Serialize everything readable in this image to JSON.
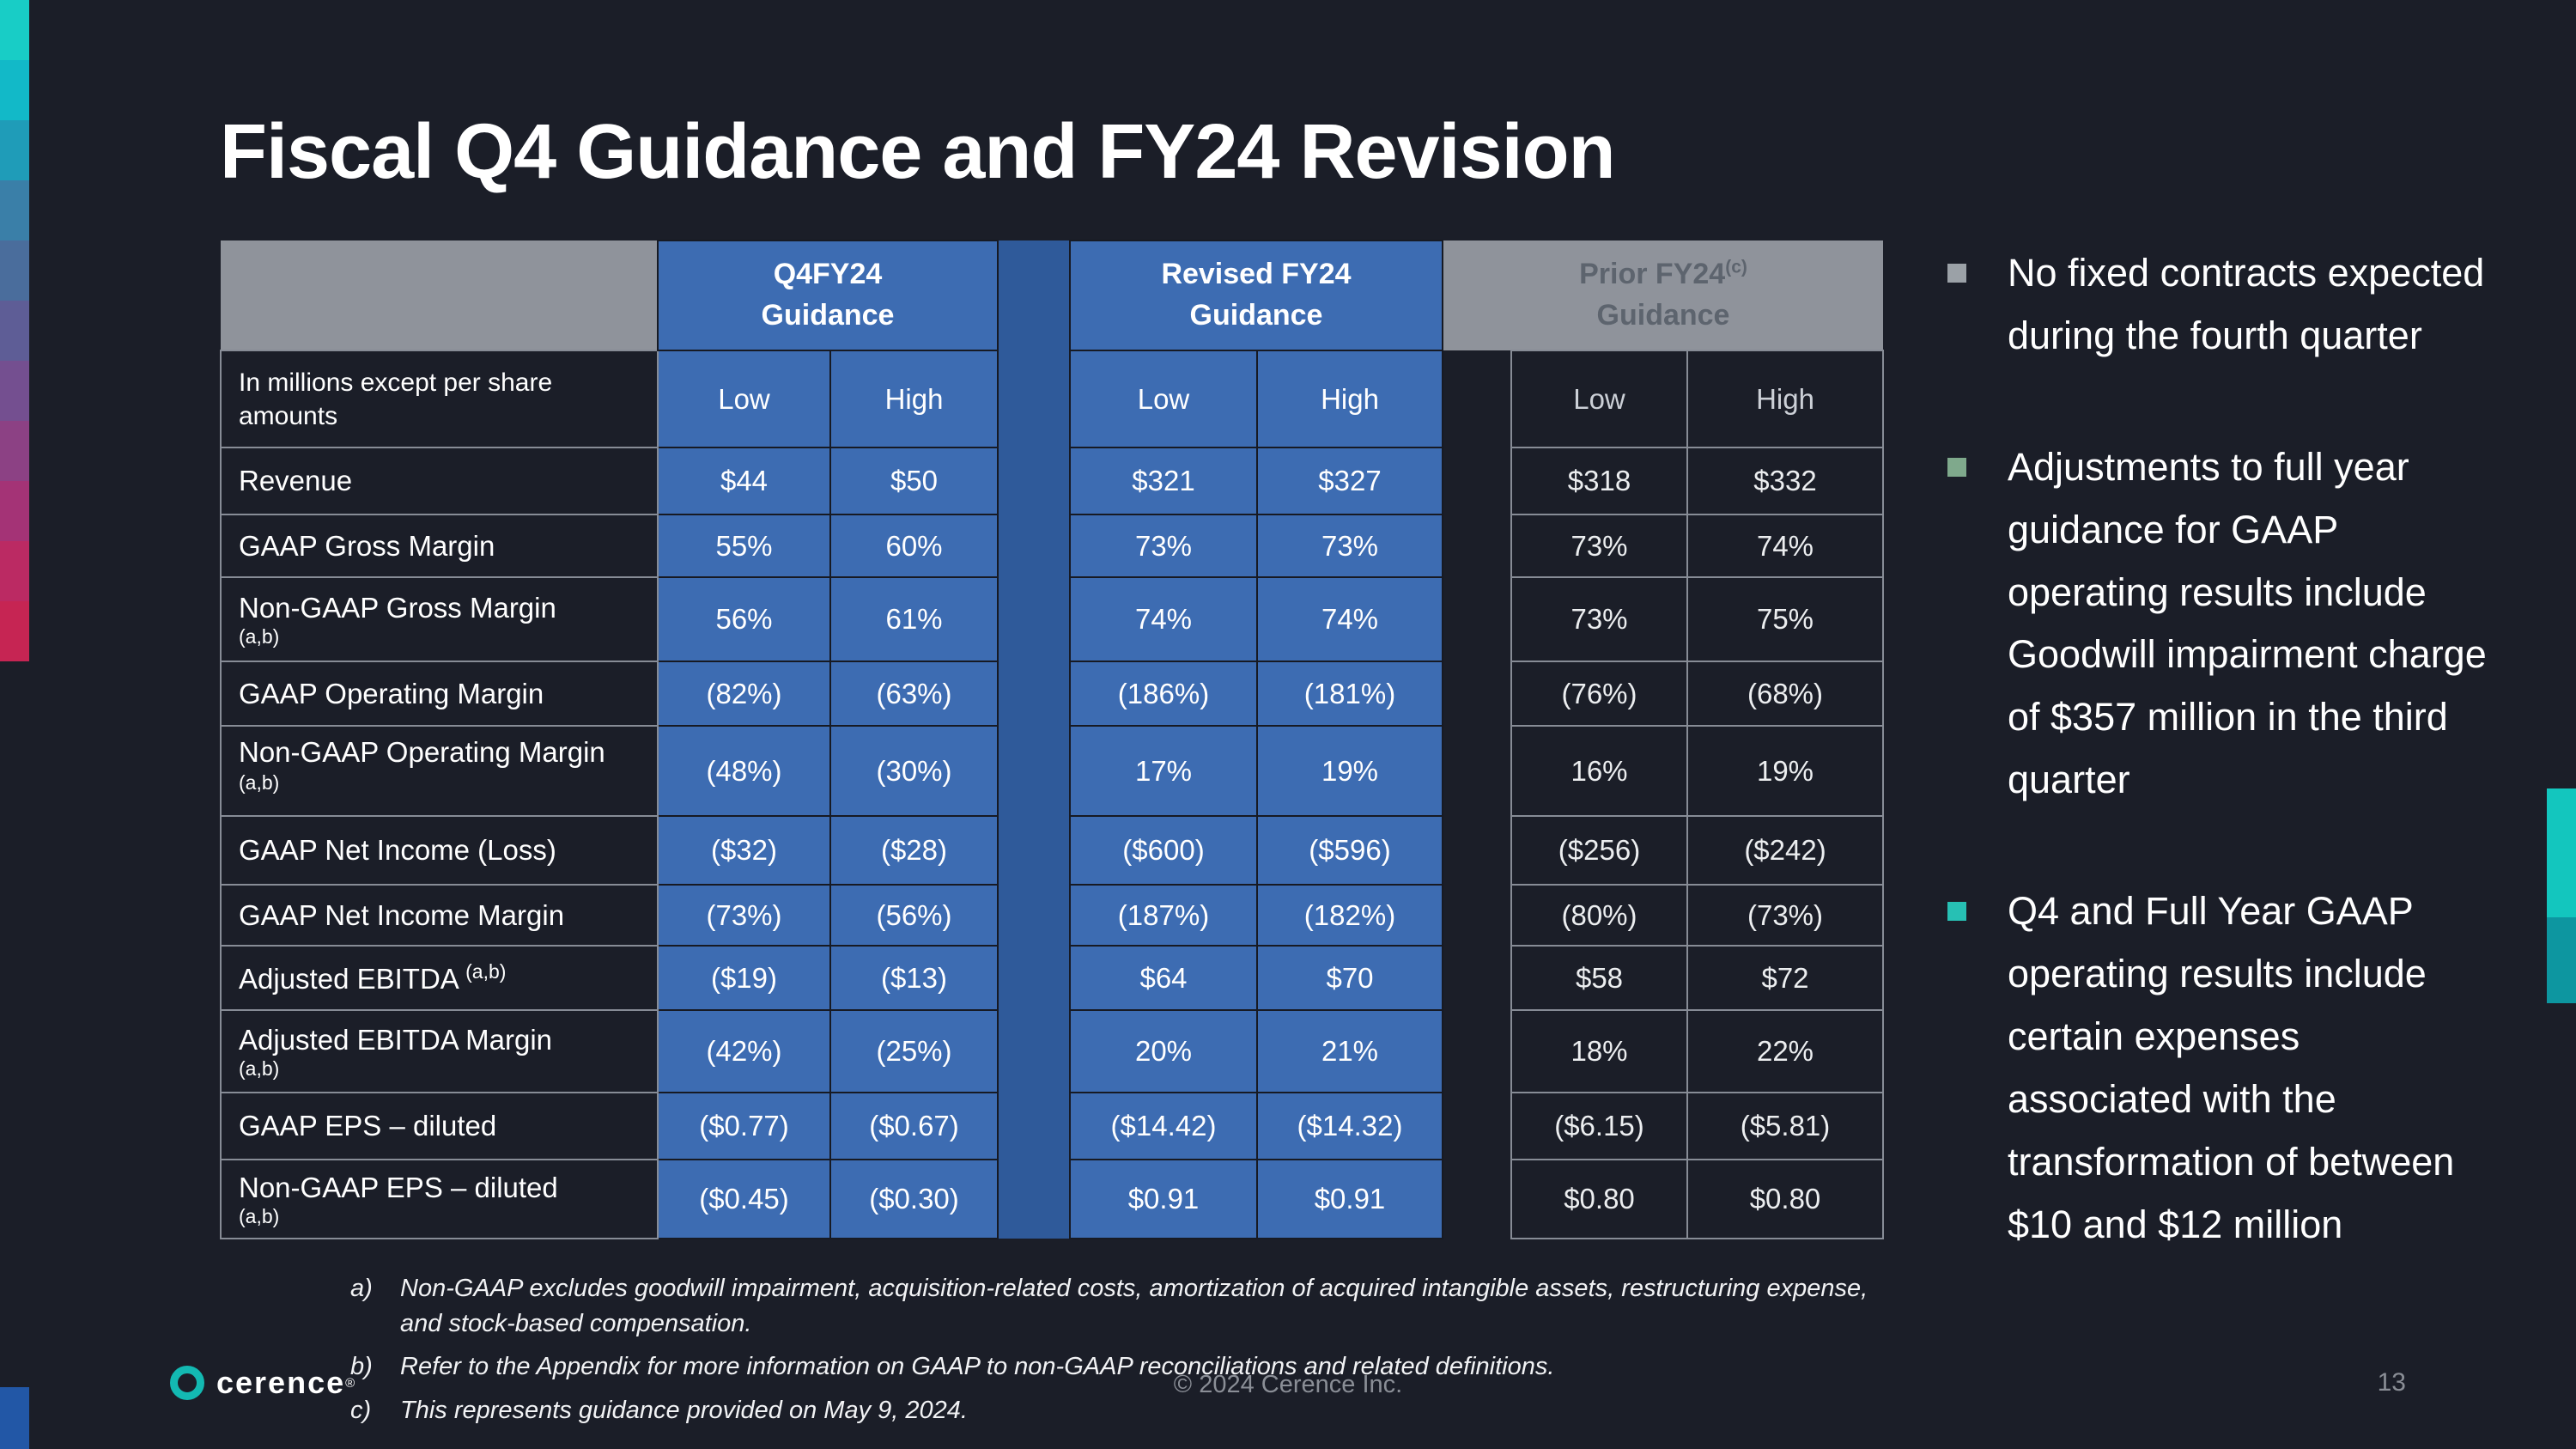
{
  "slide": {
    "title": "Fiscal Q4 Guidance and FY24 Revision",
    "page_number": "13",
    "copyright": "© 2024 Cerence Inc.",
    "logo_text": "cerence",
    "logo_reg": "®"
  },
  "table": {
    "corner_label": "In millions except per share amounts",
    "col_headers": [
      "Low",
      "High"
    ],
    "groups": [
      {
        "line1": "Q4FY24",
        "line2": "Guidance",
        "sup": ""
      },
      {
        "line1": "Revised FY24",
        "line2": "Guidance",
        "sup": ""
      },
      {
        "line1": "Prior FY24",
        "sup": "(c)",
        "line2": "Guidance"
      }
    ],
    "rows": [
      {
        "label": "Revenue",
        "sup": "",
        "sup_block": false,
        "values": [
          "$44",
          "$50",
          "$321",
          "$327",
          "$318",
          "$332"
        ]
      },
      {
        "label": "GAAP Gross Margin",
        "sup": "",
        "sup_block": false,
        "values": [
          "55%",
          "60%",
          "73%",
          "73%",
          "73%",
          "74%"
        ]
      },
      {
        "label": "Non-GAAP Gross Margin",
        "sup": "(a,b)",
        "sup_block": true,
        "values": [
          "56%",
          "61%",
          "74%",
          "74%",
          "73%",
          "75%"
        ]
      },
      {
        "label": "GAAP Operating Margin",
        "sup": "",
        "sup_block": false,
        "values": [
          "(82%)",
          "(63%)",
          "(186%)",
          "(181%)",
          "(76%)",
          "(68%)"
        ]
      },
      {
        "label": "Non-GAAP Operating Margin",
        "sup": "(a,b)",
        "sup_block": false,
        "values": [
          "(48%)",
          "(30%)",
          "17%",
          "19%",
          "16%",
          "19%"
        ]
      },
      {
        "label": "GAAP Net Income (Loss)",
        "sup": "",
        "sup_block": false,
        "values": [
          "($32)",
          "($28)",
          "($600)",
          "($596)",
          "($256)",
          "($242)"
        ]
      },
      {
        "label": "GAAP Net Income Margin",
        "sup": "",
        "sup_block": false,
        "values": [
          "(73%)",
          "(56%)",
          "(187%)",
          "(182%)",
          "(80%)",
          "(73%)"
        ]
      },
      {
        "label": "Adjusted EBITDA",
        "sup": "(a,b)",
        "sup_block": false,
        "values": [
          "($19)",
          "($13)",
          "$64",
          "$70",
          "$58",
          "$72"
        ]
      },
      {
        "label": "Adjusted EBITDA Margin",
        "sup": "(a,b)",
        "sup_block": true,
        "values": [
          "(42%)",
          "(25%)",
          "20%",
          "21%",
          "18%",
          "22%"
        ]
      },
      {
        "label": "GAAP EPS – diluted",
        "sup": "",
        "sup_block": false,
        "values": [
          "($0.77)",
          "($0.67)",
          "($14.42)",
          "($14.32)",
          "($6.15)",
          "($5.81)"
        ]
      },
      {
        "label": "Non-GAAP EPS – diluted",
        "sup": "(a,b)",
        "sup_block": true,
        "values": [
          "($0.45)",
          "($0.30)",
          "$0.91",
          "$0.91",
          "$0.80",
          "$0.80"
        ]
      }
    ]
  },
  "bullets": [
    {
      "text": "No fixed contracts expected during the fourth quarter",
      "marker_color": "#9ba1a7"
    },
    {
      "text": "Adjustments to full year guidance for GAAP operating results include Goodwill impairment charge of $357 million in the third quarter",
      "marker_color": "#7fa98c"
    },
    {
      "text": "Q4 and Full Year GAAP operating results include certain expenses associated with the transformation of between $10 and $12 million",
      "marker_color": "#27c0b4"
    }
  ],
  "footnotes": [
    {
      "letter": "a)",
      "text": "Non-GAAP excludes goodwill impairment, acquisition-related costs, amortization of acquired intangible assets, restructuring expense, and stock-based compensation."
    },
    {
      "letter": "b)",
      "text": "Refer to the Appendix for more information on GAAP to non-GAAP reconciliations and related definitions."
    },
    {
      "letter": "c)",
      "text": "This represents guidance provided on May 9, 2024."
    }
  ],
  "accents": {
    "table_blue": "#3d6cb2",
    "spacer_blue": "#2f5a9a",
    "header_gray": "#8f939b",
    "logo_teal": "#13b9b2",
    "left_strip_colors": [
      "#18cdc6",
      "#12b9c8",
      "#1f9cb8",
      "#3a7fa8",
      "#4a6d9c",
      "#5e5d96",
      "#744f90",
      "#8c4184",
      "#a43376",
      "#bb2a63",
      "#c62553"
    ],
    "bottom_left_color": "#2257a6",
    "right_edge_colors": [
      "#13c6be",
      "#0d96a0"
    ]
  }
}
